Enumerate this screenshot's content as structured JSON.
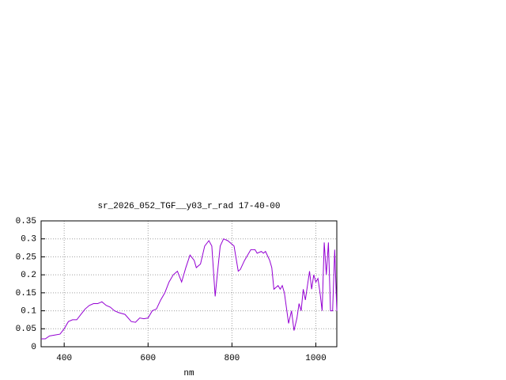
{
  "chart_data": {
    "type": "line",
    "title": "sr_2026_052_TGF__y03_r_rad 17-40-00",
    "x_label": "nm",
    "x": [
      345,
      355,
      365,
      380,
      390,
      400,
      410,
      420,
      430,
      440,
      450,
      460,
      470,
      480,
      490,
      500,
      510,
      520,
      530,
      545,
      560,
      570,
      580,
      590,
      600,
      610,
      620,
      630,
      640,
      650,
      660,
      670,
      680,
      690,
      700,
      710,
      715,
      725,
      735,
      745,
      752,
      760,
      765,
      772,
      780,
      790,
      800,
      805,
      815,
      820,
      830,
      840,
      845,
      855,
      860,
      870,
      875,
      880,
      890,
      895,
      900,
      910,
      915,
      920,
      925,
      935,
      942,
      948,
      955,
      960,
      965,
      970,
      975,
      985,
      990,
      995,
      1000,
      1005,
      1010,
      1015,
      1020,
      1025,
      1030,
      1035,
      1040,
      1045,
      1050
    ],
    "series": [
      {
        "color": "#9400d3",
        "values": [
          0.022,
          0.022,
          0.03,
          0.033,
          0.035,
          0.05,
          0.07,
          0.075,
          0.075,
          0.09,
          0.105,
          0.115,
          0.12,
          0.12,
          0.125,
          0.115,
          0.11,
          0.1,
          0.095,
          0.09,
          0.07,
          0.068,
          0.08,
          0.078,
          0.08,
          0.1,
          0.105,
          0.13,
          0.15,
          0.18,
          0.2,
          0.21,
          0.18,
          0.22,
          0.255,
          0.24,
          0.22,
          0.23,
          0.28,
          0.295,
          0.28,
          0.14,
          0.2,
          0.28,
          0.3,
          0.295,
          0.285,
          0.28,
          0.21,
          0.215,
          0.24,
          0.26,
          0.27,
          0.27,
          0.26,
          0.265,
          0.26,
          0.265,
          0.24,
          0.22,
          0.16,
          0.17,
          0.16,
          0.17,
          0.15,
          0.065,
          0.1,
          0.045,
          0.08,
          0.12,
          0.1,
          0.16,
          0.13,
          0.21,
          0.16,
          0.2,
          0.18,
          0.19,
          0.15,
          0.1,
          0.29,
          0.2,
          0.29,
          0.1,
          0.1,
          0.27,
          0.1
        ]
      }
    ],
    "xlim": [
      345,
      1050
    ],
    "ylim": [
      0,
      0.35
    ],
    "xticks": [
      400,
      600,
      800,
      1000
    ],
    "yticks": [
      0,
      0.05,
      0.1,
      0.15,
      0.2,
      0.25,
      0.3,
      0.35
    ],
    "grid": true
  }
}
